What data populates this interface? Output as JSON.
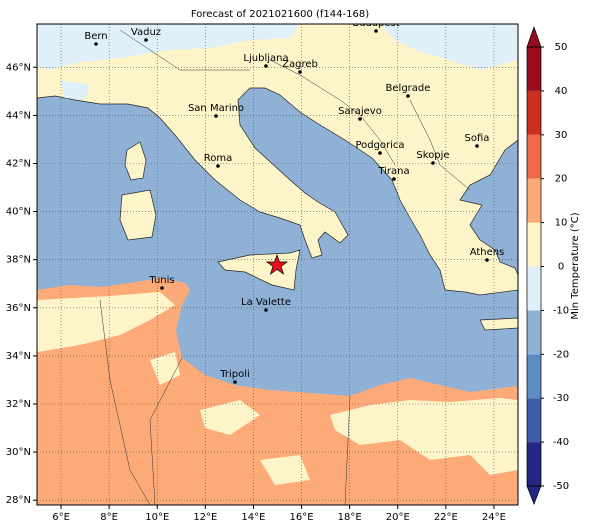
{
  "title": "Forecast of 2021021600 (f144-168)",
  "map": {
    "lon_range": [
      5,
      25
    ],
    "lat_range": [
      27.8,
      47.8
    ],
    "lon_ticks": [
      {
        "value": 6,
        "label": "6°E"
      },
      {
        "value": 8,
        "label": "8°E"
      },
      {
        "value": 10,
        "label": "10°E"
      },
      {
        "value": 12,
        "label": "12°E"
      },
      {
        "value": 14,
        "label": "14°E"
      },
      {
        "value": 16,
        "label": "16°E"
      },
      {
        "value": 18,
        "label": "18°E"
      },
      {
        "value": 20,
        "label": "20°E"
      },
      {
        "value": 22,
        "label": "22°E"
      },
      {
        "value": 24,
        "label": "24°E"
      }
    ],
    "lat_ticks": [
      {
        "value": 28,
        "label": "28°N"
      },
      {
        "value": 30,
        "label": "30°N"
      },
      {
        "value": 32,
        "label": "32°N"
      },
      {
        "value": 34,
        "label": "34°N"
      },
      {
        "value": 36,
        "label": "36°N"
      },
      {
        "value": 38,
        "label": "38°N"
      },
      {
        "value": 40,
        "label": "40°N"
      },
      {
        "value": 42,
        "label": "42°N"
      },
      {
        "value": 44,
        "label": "44°N"
      },
      {
        "value": 46,
        "label": "46°N"
      }
    ],
    "grid": true,
    "cities": [
      "Bern",
      "Vaduz",
      "Budapest",
      "Ljubljana",
      "Zagreb",
      "Belgrade",
      "San Marino",
      "Sarajevo",
      "Sofia",
      "Podgorica",
      "Skopje",
      "Roma",
      "Tirana",
      "Athens",
      "Tunis",
      "La Valette",
      "Tripoli"
    ]
  },
  "colorbar": {
    "label": "Min Temperature (°C)",
    "lim": [
      -50,
      50
    ],
    "ticks": [
      -50,
      -40,
      -30,
      -20,
      -10,
      0,
      10,
      20,
      30,
      40,
      50
    ],
    "colors": [
      "#262684",
      "#3f5ea8",
      "#5d8cc2",
      "#8fb1d6",
      "#dff0f8",
      "#fdf5c9",
      "#fcab78",
      "#ee6a48",
      "#cc2e20",
      "#990b1e"
    ]
  }
}
